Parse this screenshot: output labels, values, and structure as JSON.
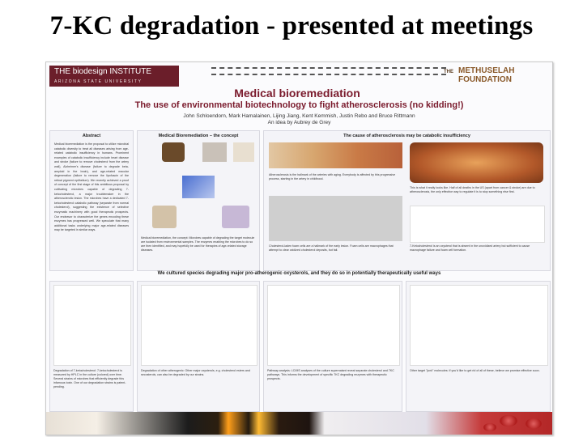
{
  "slide": {
    "title": "7-KC degradation - presented at meetings"
  },
  "poster": {
    "logo_left": "THE biodesign INSTITUTE",
    "logo_left_sub": "ARIZONA STATE UNIVERSITY",
    "logo_right_the": "THE",
    "logo_right_line1": "METHUSELAH",
    "logo_right_line2": "FOUNDATION",
    "title": "Medical bioremediation",
    "subtitle": "The use of environmental biotechnology to fight atherosclerosis (no kidding!)",
    "authors": "John Schloendorn, Mark Hamalainen, Lijing Jiang, Kent Kemmish, Justin Rebo and Bruce Rittmann",
    "idea": "An idea by Aubrey de Grey",
    "panels": {
      "abstract": "Abstract",
      "concept": "Medical Bioremediation – the concept",
      "cause": "The cause of atherosclerosis may be catabolic insufficiency"
    },
    "abstract_text": "Medical bioremediation is the proposal to utilize microbial catabolic diversity to treat all diseases arising from age-related catabolic insufficiency in humans. Prominent examples of catabolic insufficiency include heart disease and stroke (failure to remove cholesterol from the artery wall), Alzheimer's disease (failure to degrade beta-amyloid in the brain), and age-related macular degeneration (failure to remove the lipofuscin of the retinal pigment epithelium). We recently achieved a proof of concept of the first stage of this ambitious proposal by cultivating microbes capable of degrading 7-ketocholesterol, a major troublemaker in the atherosclerotic lesion. The microbes have a dedicated 7-ketocholesterol catabolic pathway (separate from normal cholesterol), suggesting the existence of selective enzymatic machinery with good therapeutic prospects. Our endeavor to characterize the genes encoding these enzymes has progressed well. We speculate that many additional tasks underlying major age-related diseases may be targeted in similar ways.",
    "notes": {
      "concept_bottom": "Medical bioremediation, the concept: Microbes capable of degrading the target molecule are isolated from environmental samples. The enzymes enabling the microbes to do so are then identified, and may hopefully be used for therapies of age-related storage diseases.",
      "athero": "Atherosclerosis is the hallmark of the arteries with aging. Everybody is affected by this progressive process, starting in the artery in childhood.",
      "looks_like": "This is what it really looks like. Half of all deaths in the US (apart from cancer & stroke) are due to atherosclerosis, the only effective way to regulate it is to stop something else first.",
      "foam": "Cholesterol-laden foam cells are a hallmark of the early lesion. Foam cells are macrophages that attempt to clear oxidized cholesterol deposits, but fail.",
      "kc": "7-Ketocholesterol is an oxysterol that is absent in the unoxidized artery but sufficient to cause macrophage failure and foam cell formation.",
      "degradation": "Degradation of 7-ketocholesterol: 7-ketocholesterol is measured by HPLC in the culture (colored) over time. Several strains of microbes that efficiently degrade this infamous toxin. One of our degradation strains is patent-pending.",
      "other": "Degradation of other atherogenic: Other major oxysterols, e.g. cholesterol esters and secosterols, can also be degraded by our strains.",
      "pathway": "Pathway analysis: LC/MS analyses of the culture supernatant reveal separate cholesterol and 7KC pathways. This informs the development of specific 7KC degrading enzymes with therapeutic prospects.",
      "junk": "Other target \"junk\" molecules: If you'd like to get rid of all of these, believe we promise effective soon."
    },
    "banner": "We cultured species degrading major pro-atherogenic oxysterols, and they do so in potentially therapeutically useful ways"
  }
}
